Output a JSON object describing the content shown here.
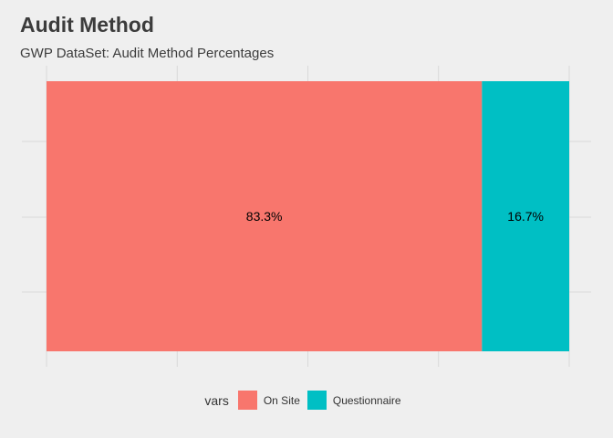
{
  "title": "Audit Method",
  "subtitle": "GWP DataSet: Audit Method Percentages",
  "legend": {
    "title": "vars"
  },
  "colors": {
    "On Site": "#F8766D",
    "Questionnaire": "#00BFC4",
    "background": "#EFEFEF",
    "grid": "#D9D9D9"
  },
  "chart_data": {
    "type": "bar",
    "orientation": "horizontal-stacked",
    "title": "Audit Method",
    "subtitle": "GWP DataSet: Audit Method Percentages",
    "xlim": [
      0,
      100
    ],
    "grid": true,
    "legend_position": "bottom",
    "series": [
      {
        "name": "On Site",
        "values": [
          83.3
        ],
        "label": "83.3%"
      },
      {
        "name": "Questionnaire",
        "values": [
          16.7
        ],
        "label": "16.7%"
      }
    ]
  }
}
